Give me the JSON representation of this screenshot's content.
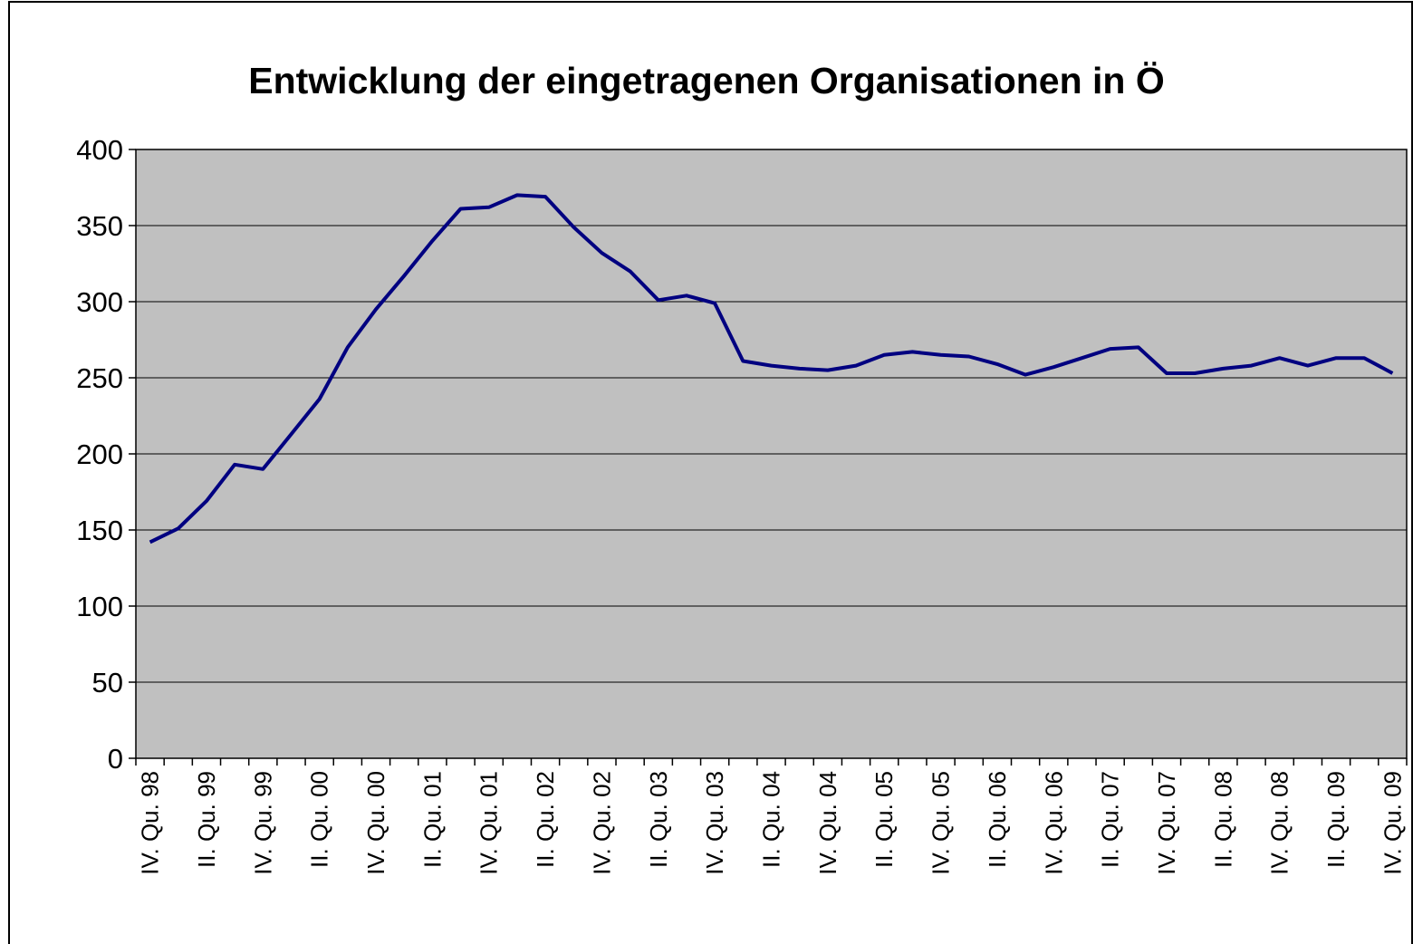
{
  "chart_data": {
    "type": "line",
    "title": "Entwicklung der eingetragenen Organisationen in Ö",
    "categories": [
      "IV. Qu. 98",
      null,
      "II. Qu. 99",
      null,
      "IV. Qu. 99",
      null,
      "II. Qu. 00",
      null,
      "IV. Qu. 00",
      null,
      "II. Qu. 01",
      null,
      "IV. Qu. 01",
      null,
      "II. Qu. 02",
      null,
      "IV. Qu. 02",
      null,
      "II. Qu. 03",
      null,
      "IV. Qu. 03",
      null,
      "II. Qu. 04",
      null,
      "IV. Qu. 04",
      null,
      "II. Qu. 05",
      null,
      "IV. Qu. 05",
      null,
      "II. Qu. 06",
      null,
      "IV. Qu. 06",
      null,
      "II. Qu. 07",
      null,
      "IV. Qu. 07",
      null,
      "II. Qu. 08",
      null,
      "IV. Qu. 08",
      null,
      "II. Qu. 09",
      null,
      "IV. Qu. 09"
    ],
    "values": [
      142,
      151,
      169,
      193,
      190,
      213,
      236,
      270,
      295,
      317,
      340,
      361,
      362,
      370,
      369,
      349,
      332,
      320,
      301,
      304,
      299,
      261,
      258,
      256,
      255,
      258,
      265,
      267,
      265,
      264,
      259,
      252,
      257,
      263,
      269,
      270,
      253,
      253,
      256,
      258,
      263,
      258,
      263,
      263,
      253
    ],
    "color": "#000080",
    "ylim": [
      0,
      400
    ],
    "yticks": [
      0,
      50,
      100,
      150,
      200,
      250,
      300,
      350,
      400
    ],
    "grid": true,
    "plot_background": "#c0c0c0"
  }
}
